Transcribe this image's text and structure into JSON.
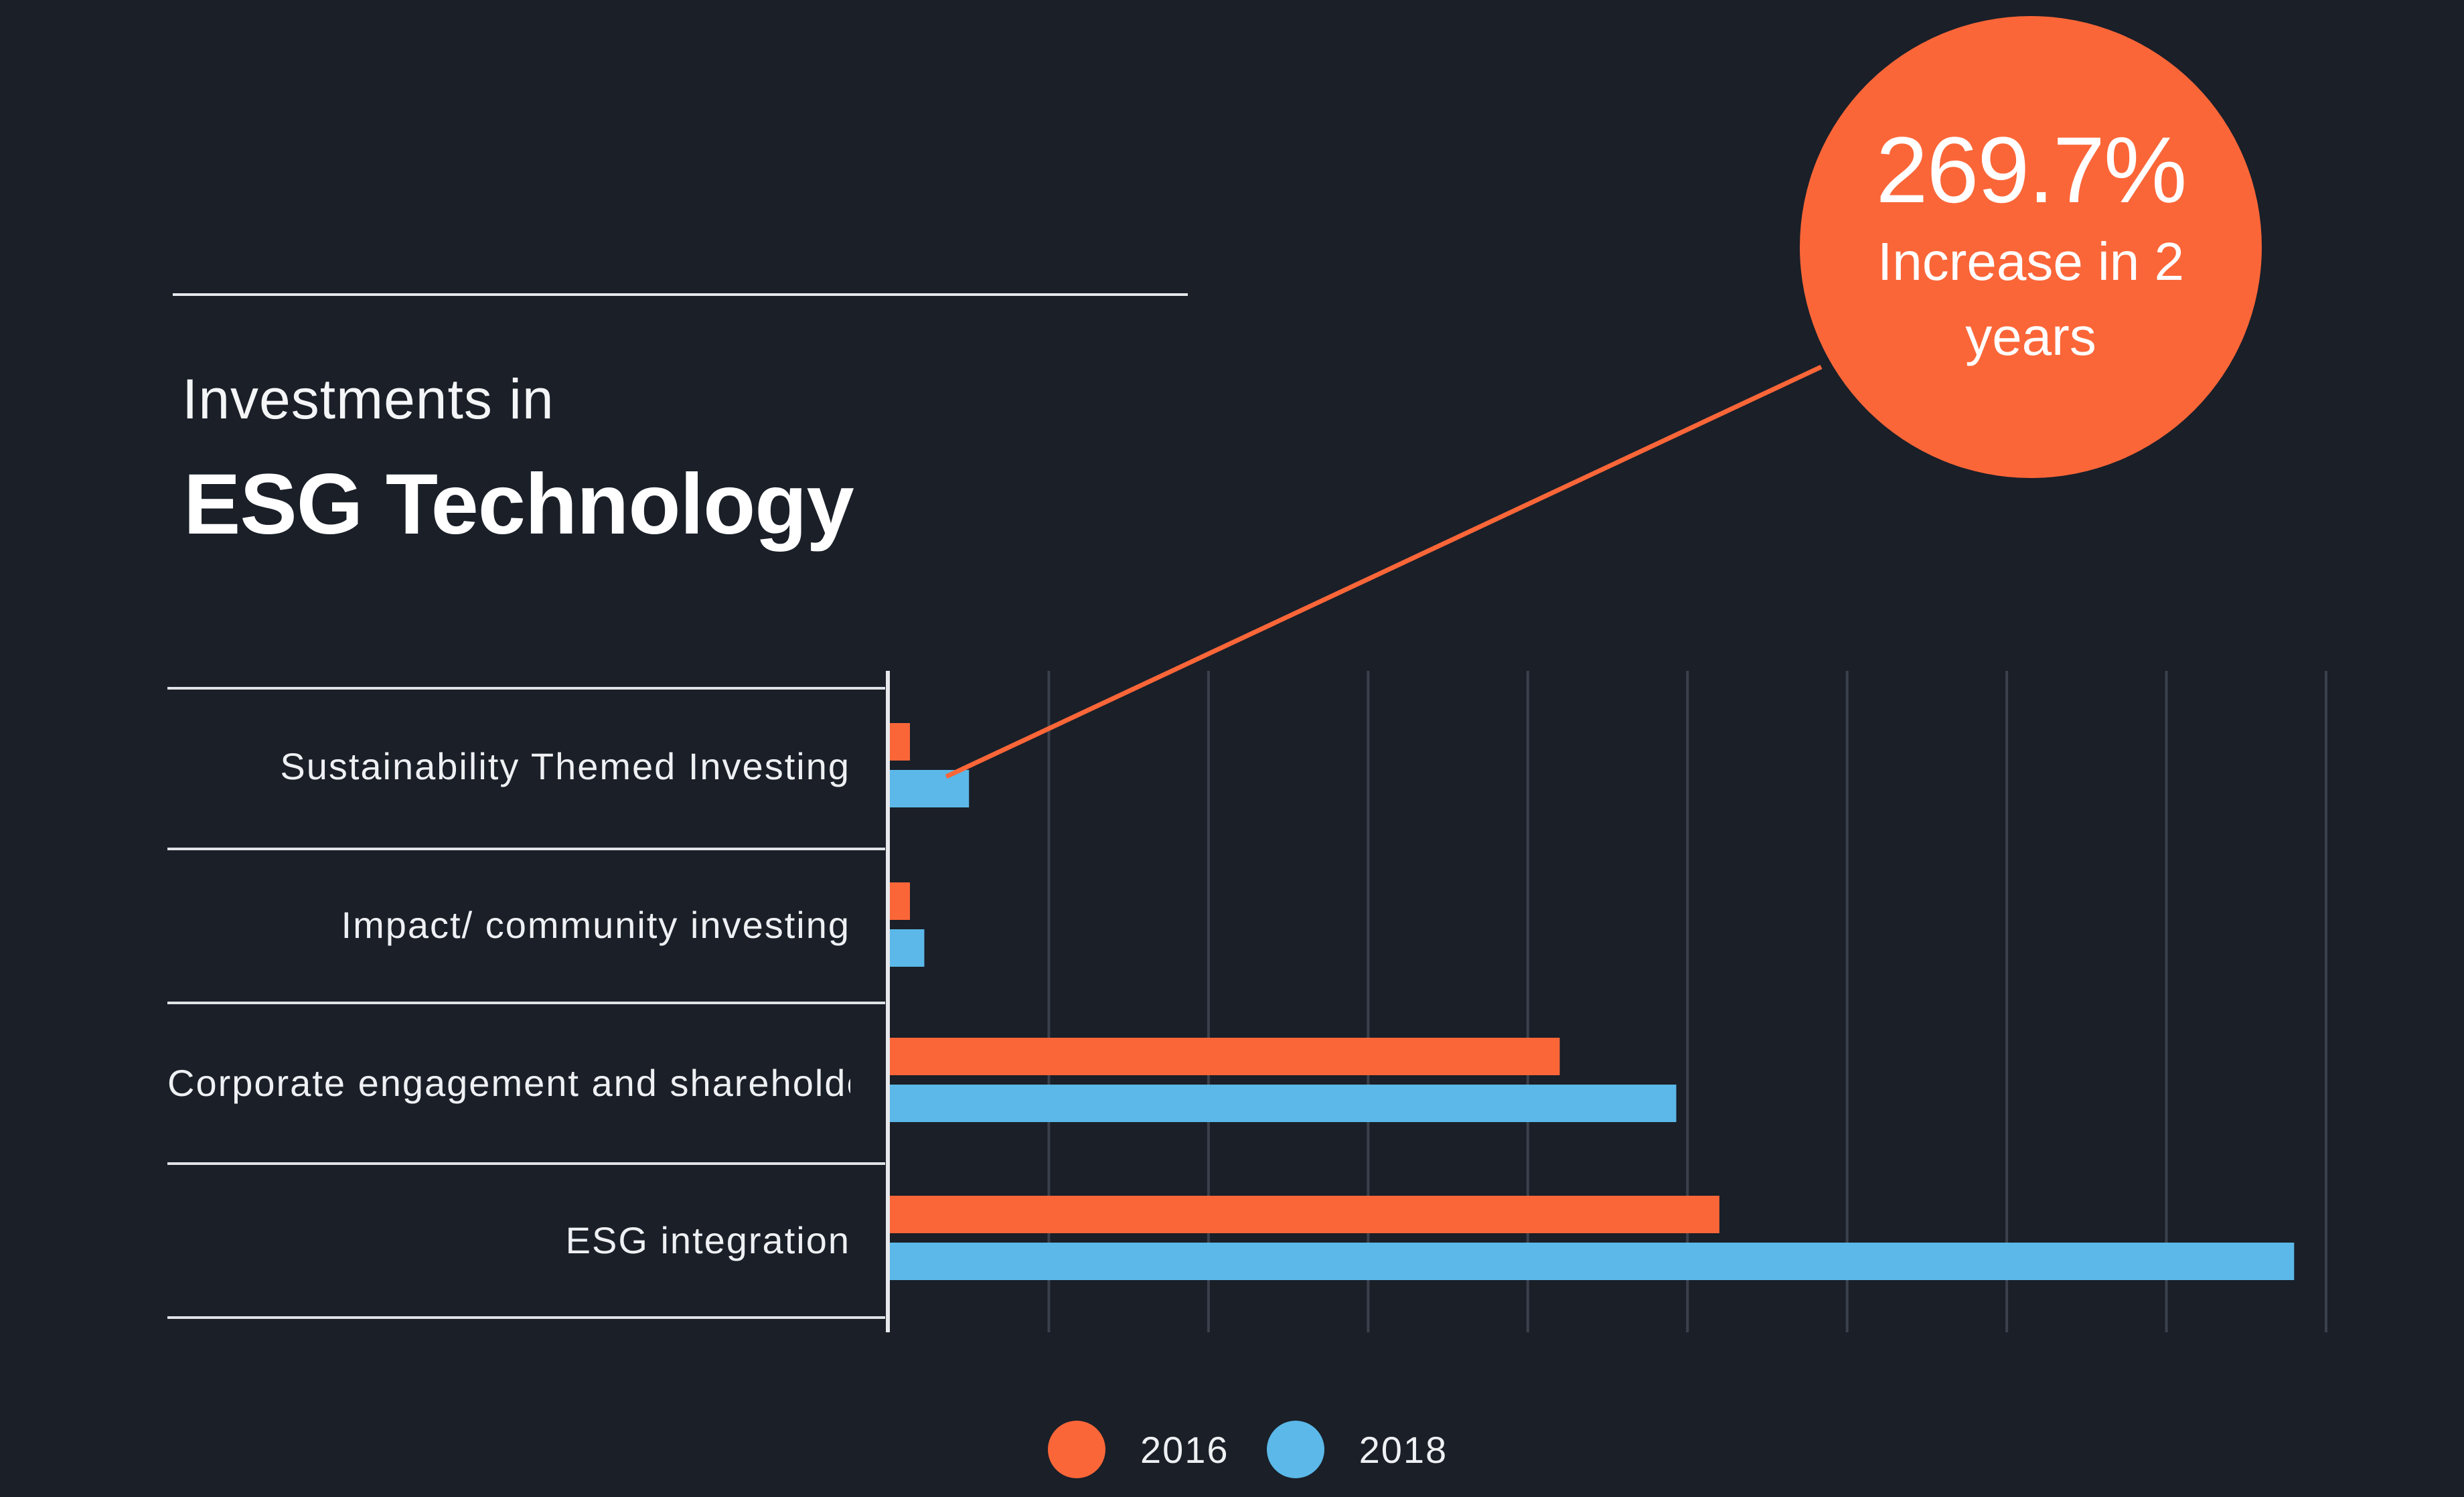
{
  "title": {
    "line1": "Investments in",
    "line2": "ESG Technology"
  },
  "callout": {
    "value": "269.7%",
    "text": "Increase in 2 years"
  },
  "chart_data": {
    "type": "bar",
    "orientation": "horizontal",
    "categories": [
      "Sustainability Themed Investing",
      "Impact/ community investing",
      "Corporate engagement and shareholder action",
      "ESG integration"
    ],
    "series": [
      {
        "name": "2016",
        "color": "#fb6638",
        "values": [
          0.13,
          0.13,
          4.2,
          5.2
        ]
      },
      {
        "name": "2018",
        "color": "#5bb8e8",
        "values": [
          0.5,
          0.22,
          4.93,
          8.8
        ]
      }
    ],
    "xlim": [
      0,
      9
    ],
    "grid": "vertical",
    "legend": "bottom-center",
    "title": "Investments in ESG Technology"
  },
  "legend": {
    "items": [
      {
        "label": "2016",
        "color": "#fb6638"
      },
      {
        "label": "2018",
        "color": "#5bb8e8"
      }
    ]
  }
}
